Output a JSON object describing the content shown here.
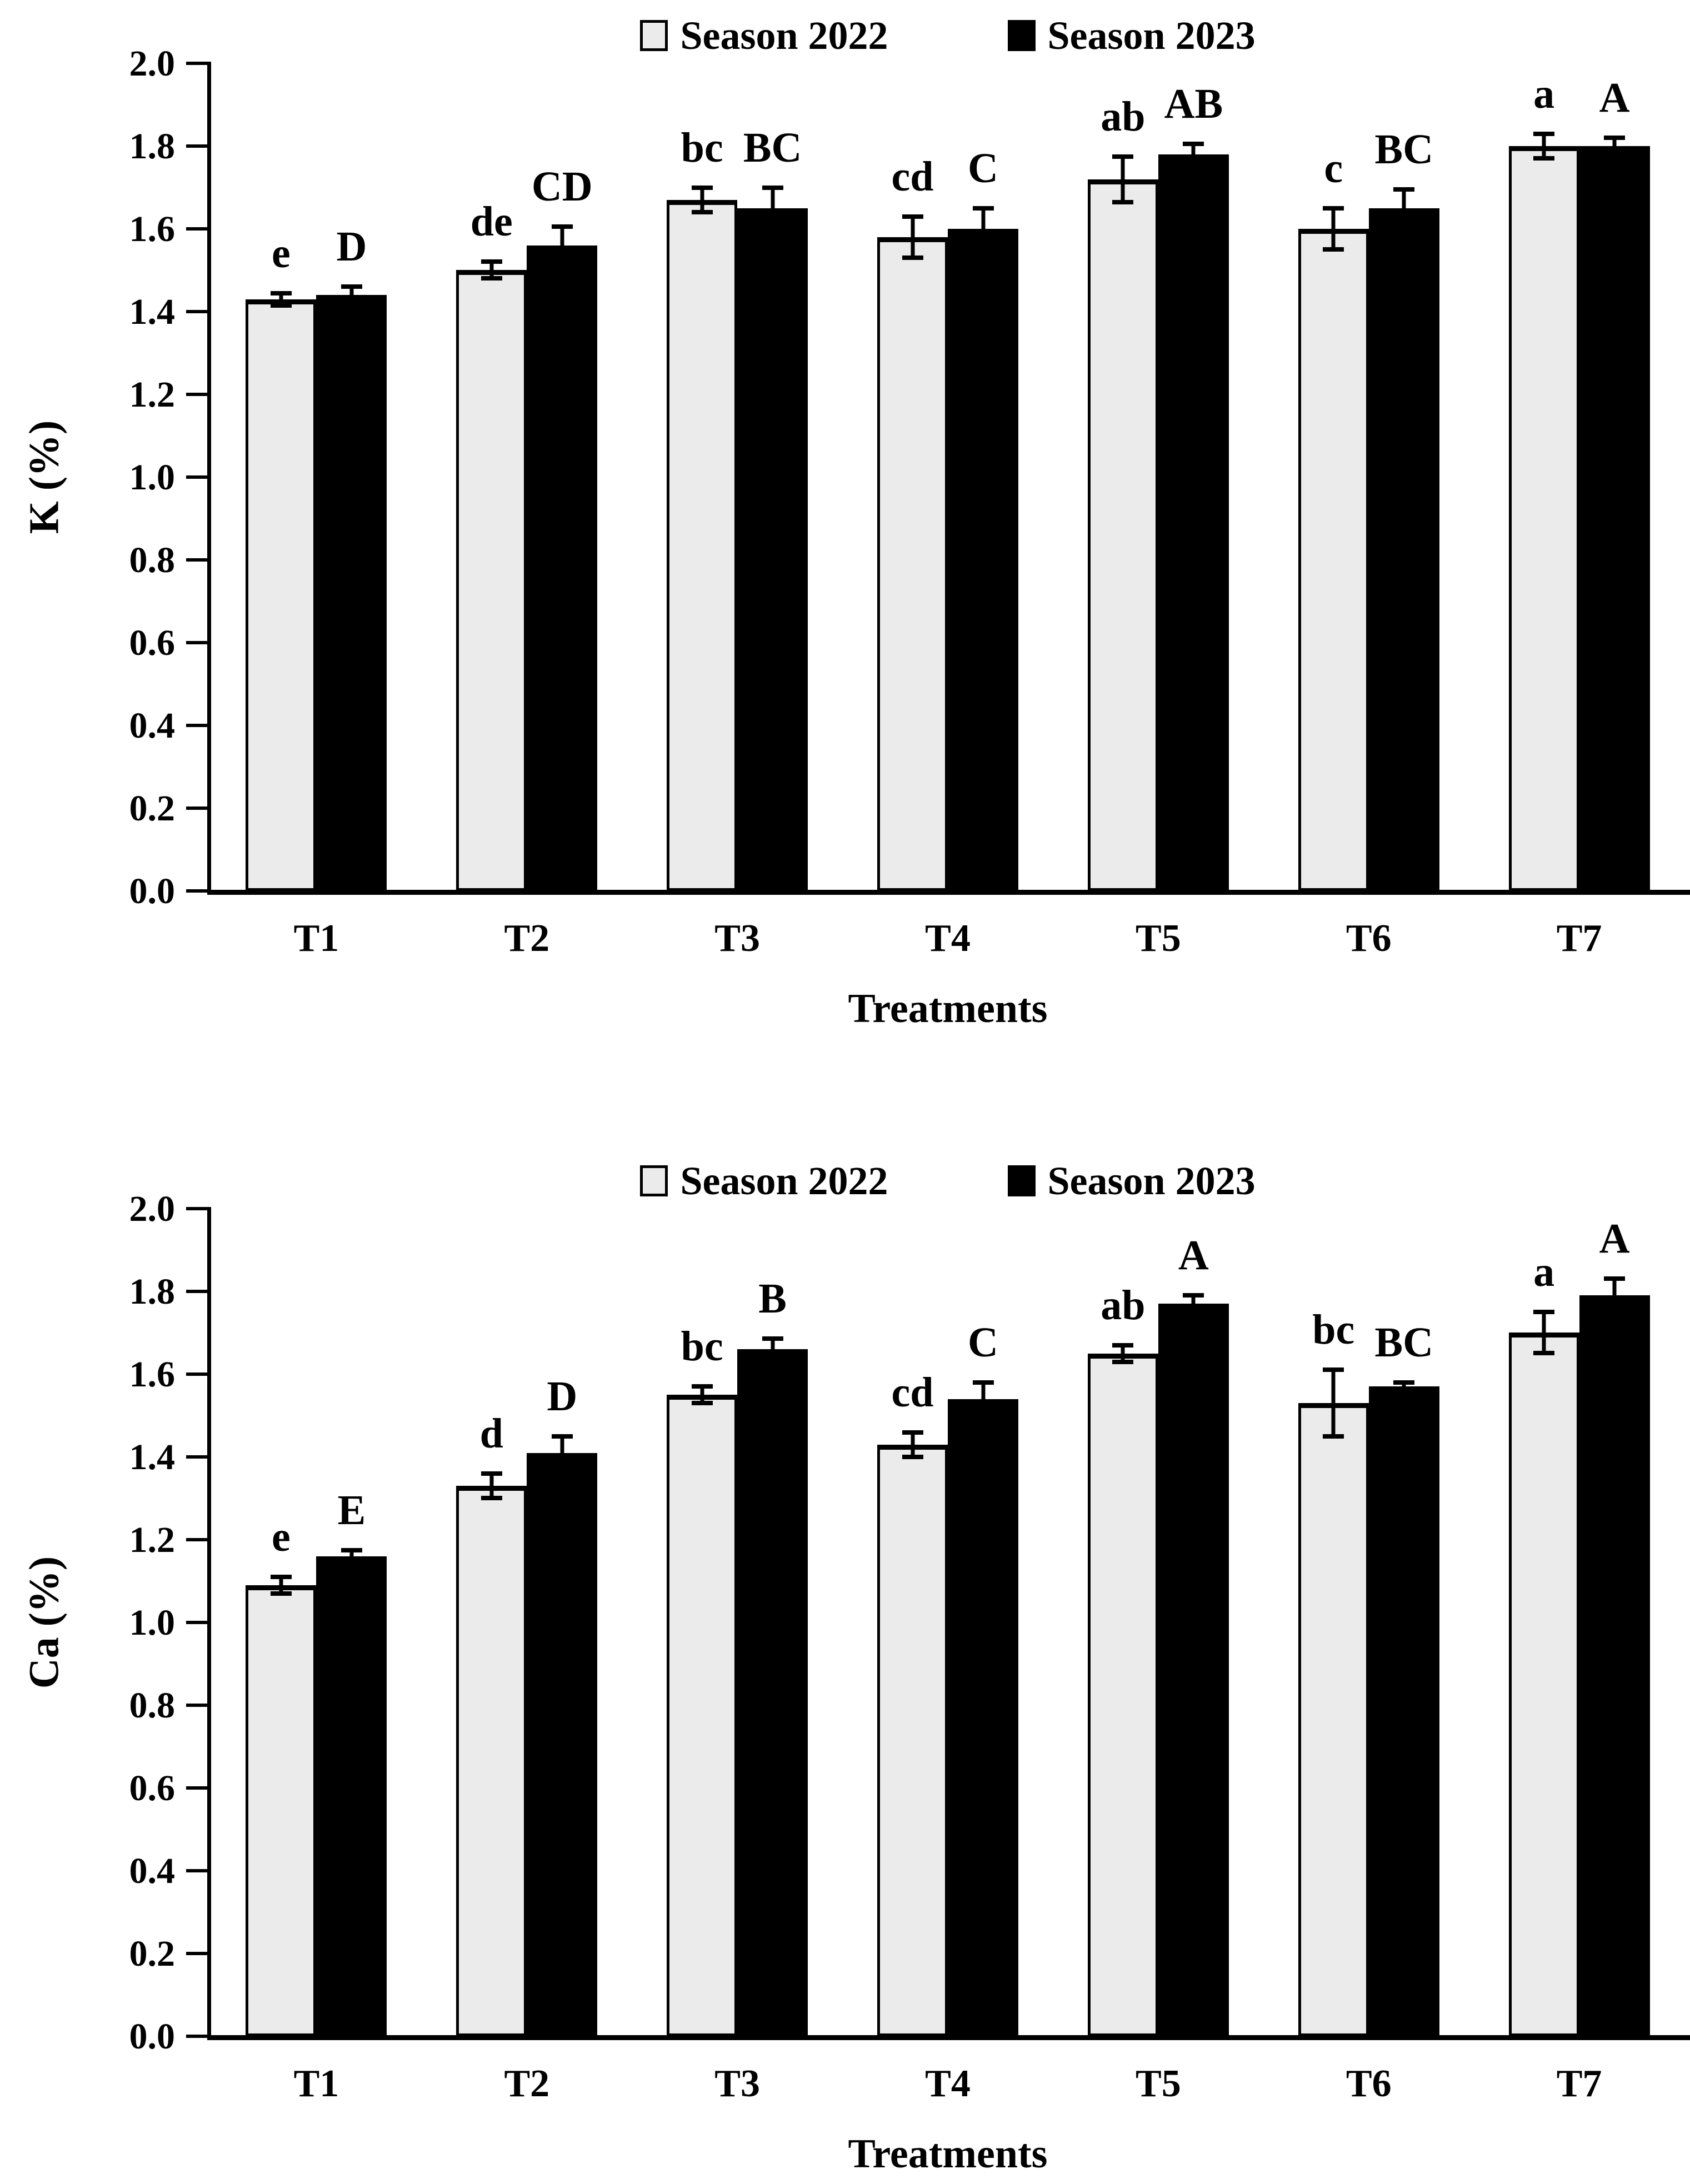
{
  "figure_title": "",
  "colors": {
    "season_2022_fill": "#ebebeb",
    "season_2023_fill": "#000000",
    "axis": "#000000",
    "background": "#ffffff"
  },
  "chart_data": [
    {
      "type": "bar",
      "title": "",
      "xlabel": "Treatments",
      "ylabel": "K (%)",
      "ylim": [
        0.0,
        2.0
      ],
      "ytick_step": 0.2,
      "yticks": [
        "0.0",
        "0.2",
        "0.4",
        "0.6",
        "0.8",
        "1.0",
        "1.2",
        "1.4",
        "1.6",
        "1.8",
        "2.0"
      ],
      "grid": false,
      "legend_position": "top-center",
      "categories": [
        "T1",
        "T2",
        "T3",
        "T4",
        "T5",
        "T6",
        "T7"
      ],
      "series": [
        {
          "name": "Season 2022",
          "color": "#ebebeb",
          "values": [
            1.43,
            1.5,
            1.67,
            1.58,
            1.72,
            1.6,
            1.8
          ],
          "errors": [
            0.015,
            0.02,
            0.03,
            0.05,
            0.055,
            0.05,
            0.03
          ],
          "letters": [
            "e",
            "de",
            "bc",
            "cd",
            "ab",
            "c",
            "a"
          ]
        },
        {
          "name": "Season 2023",
          "color": "#000000",
          "values": [
            1.44,
            1.56,
            1.65,
            1.6,
            1.78,
            1.65,
            1.8
          ],
          "errors": [
            0.02,
            0.045,
            0.05,
            0.05,
            0.025,
            0.045,
            0.02
          ],
          "letters": [
            "D",
            "CD",
            "BC",
            "C",
            "AB",
            "BC",
            "A"
          ]
        }
      ]
    },
    {
      "type": "bar",
      "title": "",
      "xlabel": "Treatments",
      "ylabel": "Ca (%)",
      "ylim": [
        0.0,
        2.0
      ],
      "ytick_step": 0.2,
      "yticks": [
        "0.0",
        "0.2",
        "0.4",
        "0.6",
        "0.8",
        "1.0",
        "1.2",
        "1.4",
        "1.6",
        "1.8",
        "2.0"
      ],
      "grid": false,
      "legend_position": "top-center",
      "categories": [
        "T1",
        "T2",
        "T3",
        "T4",
        "T5",
        "T6",
        "T7"
      ],
      "series": [
        {
          "name": "Season 2022",
          "color": "#ebebeb",
          "values": [
            1.09,
            1.33,
            1.55,
            1.43,
            1.65,
            1.53,
            1.7
          ],
          "errors": [
            0.02,
            0.03,
            0.02,
            0.03,
            0.02,
            0.08,
            0.05
          ],
          "letters": [
            "e",
            "d",
            "bc",
            "cd",
            "ab",
            "bc",
            "a"
          ]
        },
        {
          "name": "Season 2023",
          "color": "#000000",
          "values": [
            1.16,
            1.41,
            1.66,
            1.54,
            1.77,
            1.57,
            1.79
          ],
          "errors": [
            0.015,
            0.04,
            0.025,
            0.04,
            0.02,
            0.01,
            0.04
          ],
          "letters": [
            "E",
            "D",
            "B",
            "C",
            "A",
            "BC",
            "A"
          ]
        }
      ]
    }
  ]
}
